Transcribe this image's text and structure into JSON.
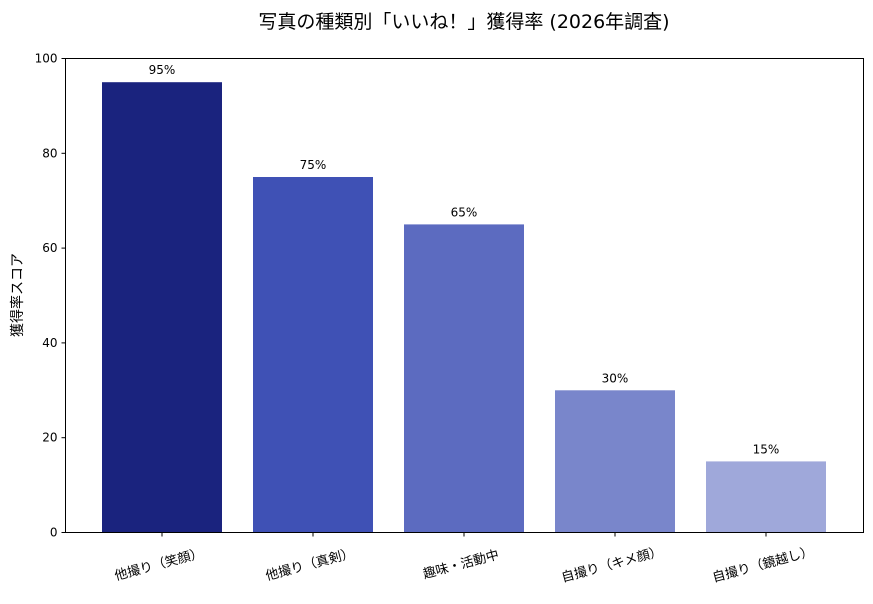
{
  "chart_data": {
    "type": "bar",
    "title": "写真の種類別「いいね！」獲得率 (2026年調査)",
    "xlabel": "",
    "ylabel": "獲得率スコア",
    "ylim": [
      0,
      100
    ],
    "yticks": [
      "0",
      "20",
      "40",
      "60",
      "80",
      "100"
    ],
    "grid": false,
    "categories": [
      "他撮り（笑顔）",
      "他撮り（真剣）",
      "趣味・活動中",
      "自撮り（キメ顔）",
      "自撮り（鏡越し）"
    ],
    "values": [
      95,
      75,
      65,
      30,
      15
    ],
    "data_labels": [
      "95%",
      "75%",
      "65%",
      "30%",
      "15%"
    ],
    "colors": [
      "#1a237e",
      "#3f51b5",
      "#5c6bc0",
      "#7986cb",
      "#9fa8da"
    ]
  }
}
